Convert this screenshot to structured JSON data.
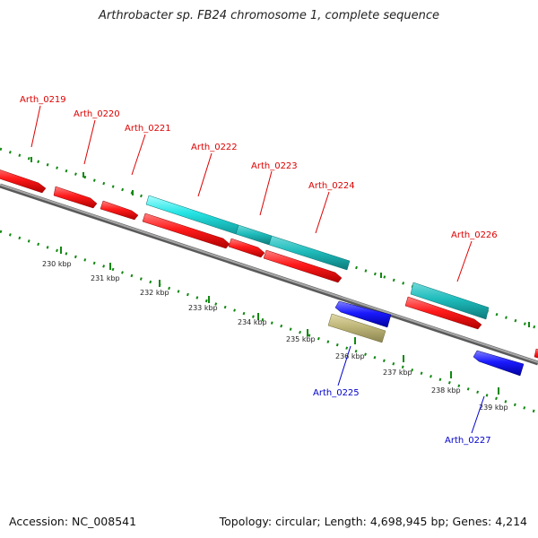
{
  "title": "Arthrobacter sp. FB24 chromosome 1, complete sequence",
  "footer": {
    "accession": "Accession: NC_008541",
    "topology": "Topology: circular; Length: 4,698,945 bp; Genes: 4,214"
  },
  "colors": {
    "forward_gene": "#ff1a1a",
    "reverse_gene": "#1a1aff",
    "cds_track": "#22e0e0",
    "misc_feature": "#b8b070",
    "backbone": "#808080",
    "tick": "#118811",
    "forward_label": "#dd0000",
    "reverse_label": "#0000cc"
  },
  "gene_labels": [
    {
      "name": "Arth_0219",
      "strand": "forward"
    },
    {
      "name": "Arth_0220",
      "strand": "forward"
    },
    {
      "name": "Arth_0221",
      "strand": "forward"
    },
    {
      "name": "Arth_0222",
      "strand": "forward"
    },
    {
      "name": "Arth_0223",
      "strand": "forward"
    },
    {
      "name": "Arth_0224",
      "strand": "forward"
    },
    {
      "name": "Arth_0226",
      "strand": "forward"
    },
    {
      "name": "Arth_0225",
      "strand": "reverse"
    },
    {
      "name": "Arth_0227",
      "strand": "reverse"
    }
  ],
  "scale_labels": [
    "230 kbp",
    "231 kbp",
    "232 kbp",
    "233 kbp",
    "234 kbp",
    "235 kbp",
    "236 kbp",
    "237 kbp",
    "238 kbp",
    "239 kbp"
  ]
}
